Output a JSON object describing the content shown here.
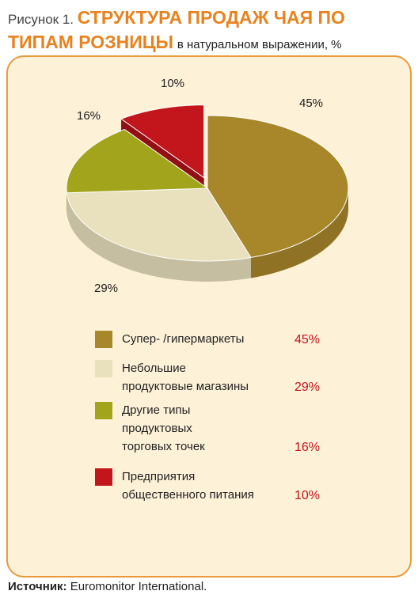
{
  "chart_data": {
    "type": "pie",
    "figure_label": "Рисунок 1.",
    "title": "СТРУКТУРА ПРОДАЖ ЧАЯ ПО ТИПАМ РОЗНИЦЫ",
    "subtitle": "в натуральном выражении, %",
    "categories": [
      "Супер- /гипермаркеты",
      "Небольшие\nпродуктовые магазины",
      "Другие типы\nпродуктовых\nторговых точек",
      "Предприятия\nобщественного питания"
    ],
    "values": [
      45,
      29,
      16,
      10
    ],
    "value_labels": [
      "45%",
      "29%",
      "16%",
      "10%"
    ],
    "colors": [
      "#a8862a",
      "#e9e0bd",
      "#a2a51c",
      "#c2151c"
    ],
    "source_label": "Источник:",
    "source": "Euromonitor International."
  }
}
